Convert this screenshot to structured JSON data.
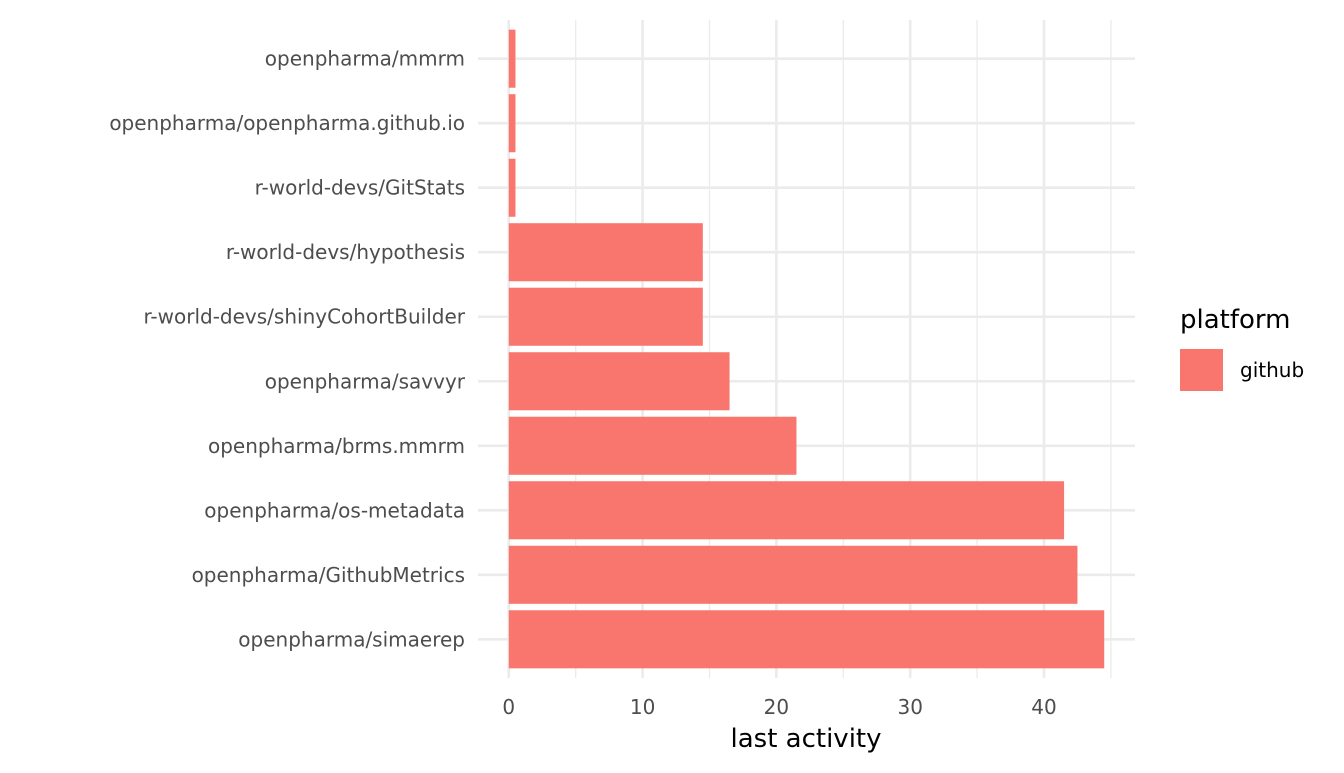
{
  "chart_data": {
    "type": "bar",
    "orientation": "horizontal",
    "categories": [
      "openpharma/mmrm",
      "openpharma/openpharma.github.io",
      "r-world-devs/GitStats",
      "r-world-devs/hypothesis",
      "r-world-devs/shinyCohortBuilder",
      "openpharma/savvyr",
      "openpharma/brms.mmrm",
      "openpharma/os-metadata",
      "openpharma/GithubMetrics",
      "openpharma/simaerep"
    ],
    "series": [
      {
        "name": "github",
        "color": "#F8766D",
        "values": [
          0.5,
          0.5,
          0.5,
          14.5,
          14.5,
          16.5,
          21.5,
          41.5,
          42.5,
          44.5
        ]
      }
    ],
    "xlabel": "last activity",
    "ylabel": "",
    "xlim": [
      -2.3,
      46.8
    ],
    "xticks": [
      0,
      10,
      20,
      30,
      40
    ],
    "grid": true,
    "legend": {
      "title": "platform",
      "position": "right",
      "entries": [
        {
          "label": "github",
          "color": "#F8766D"
        }
      ]
    }
  }
}
